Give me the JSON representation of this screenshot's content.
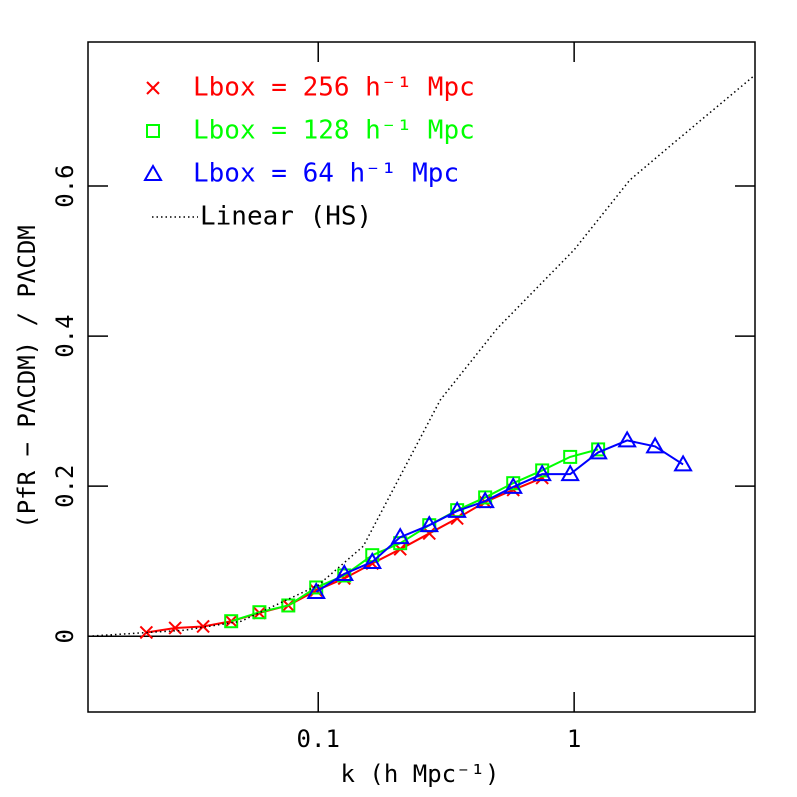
{
  "chart_data": {
    "type": "line",
    "x_label": "k (h Mpc⁻¹)",
    "y_label": "(PfR − PΛCDM) / PΛCDM",
    "xscale": "log",
    "xlim": [
      0.0126,
      5.09
    ],
    "ylim": [
      -0.101,
      0.792
    ],
    "xticks": [
      0.1,
      1
    ],
    "yticks": [
      0,
      0.2,
      0.4,
      0.6
    ],
    "zero_line": true,
    "series": [
      {
        "name": "Lbox = 256 h⁻¹ Mpc",
        "color": "#ff0000",
        "marker": "cross",
        "x": [
          0.0213,
          0.0276,
          0.0355,
          0.0457,
          0.0589,
          0.0764,
          0.0982,
          0.1264,
          0.1626,
          0.2091,
          0.2716,
          0.349,
          0.449,
          0.578,
          0.75
        ],
        "values": [
          0.005,
          0.011,
          0.013,
          0.02,
          0.031,
          0.041,
          0.061,
          0.077,
          0.097,
          0.116,
          0.137,
          0.157,
          0.179,
          0.195,
          0.211
        ]
      },
      {
        "name": "Lbox = 128 h⁻¹ Mpc",
        "color": "#00ff00",
        "marker": "square",
        "x": [
          0.0457,
          0.0589,
          0.0764,
          0.0982,
          0.1264,
          0.1626,
          0.2091,
          0.2716,
          0.349,
          0.449,
          0.578,
          0.75,
          0.965,
          1.241
        ],
        "values": [
          0.02,
          0.032,
          0.041,
          0.065,
          0.081,
          0.108,
          0.124,
          0.148,
          0.168,
          0.185,
          0.204,
          0.221,
          0.239,
          0.249
        ]
      },
      {
        "name": "Lbox = 64 h⁻¹ Mpc",
        "color": "#0000ff",
        "marker": "triangle",
        "x": [
          0.0982,
          0.1264,
          0.1626,
          0.2091,
          0.2716,
          0.349,
          0.449,
          0.578,
          0.75,
          0.965,
          1.241,
          1.611,
          2.072,
          2.665
        ],
        "values": [
          0.059,
          0.083,
          0.099,
          0.132,
          0.148,
          0.167,
          0.18,
          0.199,
          0.216,
          0.216,
          0.245,
          0.261,
          0.253,
          0.229
        ]
      },
      {
        "name": "Linear (HS)",
        "color": "#000000",
        "marker": "none",
        "linestyle": "dotted",
        "x": [
          0.0126,
          0.03,
          0.05,
          0.1,
          0.15,
          0.3,
          0.5,
          1,
          1.65,
          2.5,
          5.09
        ],
        "values": [
          0.0,
          0.008,
          0.02,
          0.068,
          0.12,
          0.315,
          0.41,
          0.515,
          0.608,
          0.66,
          0.748
        ]
      }
    ]
  }
}
